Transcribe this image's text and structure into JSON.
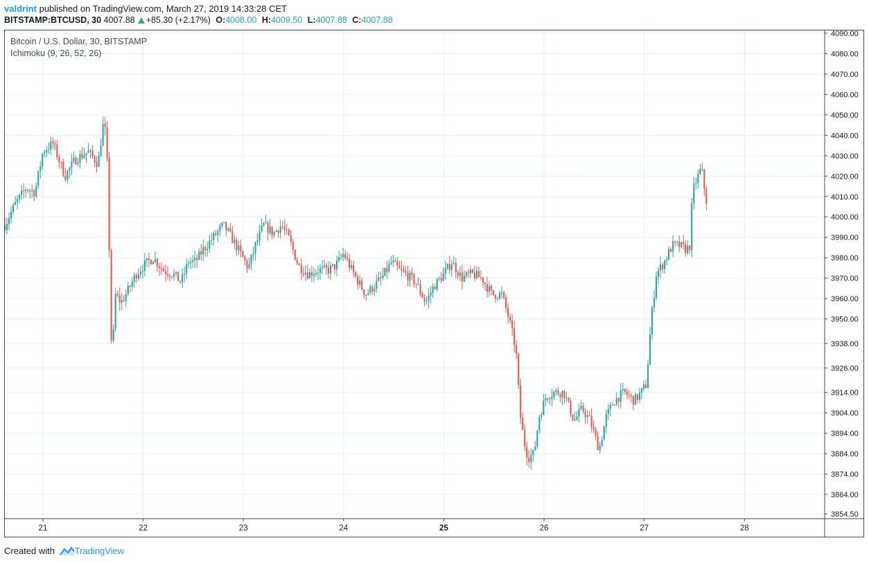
{
  "header": {
    "user": "valdrint",
    "published_text": "published on TradingView.com, March 27, 2019 14:33:28 CET",
    "symbol": "BITSTAMP:BTCUSD, 30",
    "last_price": "4007.88",
    "change": "+85.30 (+2.17%)",
    "open_label": "O:",
    "open": "4008.00",
    "high_label": "H:",
    "high": "4009.50",
    "low_label": "L:",
    "low": "4007.88",
    "close_label": "C:",
    "close": "4007.88"
  },
  "legend": {
    "title": "Bitcoin / U.S. Dollar, 30, BITSTAMP",
    "indicator": "Ichimoku (9, 26, 52, 26)"
  },
  "footer": {
    "created_with": "Created with",
    "brand": "TradingView"
  },
  "colors": {
    "up": "#26a69a",
    "down": "#ef5350",
    "grid": "#e6f0f5",
    "axis_text": "#131722"
  },
  "chart_data": {
    "type": "candlestick",
    "title": "Bitcoin / U.S. Dollar, 30, BITSTAMP",
    "x_ticks": [
      "21",
      "22",
      "23",
      "24",
      "25",
      "26",
      "27",
      "28"
    ],
    "x_ticks_bold": [
      "25"
    ],
    "x_range_days": [
      20.62,
      28.8
    ],
    "y_ticks": [
      "4090.00",
      "4080.00",
      "4070.00",
      "4060.00",
      "4050.00",
      "4040.00",
      "4030.00",
      "4020.00",
      "4010.00",
      "4000.00",
      "3990.00",
      "3980.00",
      "3970.00",
      "3960.00",
      "3950.00",
      "3938.00",
      "3926.00",
      "3914.00",
      "3904.00",
      "3894.00",
      "3884.00",
      "3874.00",
      "3864.00",
      "3854.50"
    ],
    "ylim": [
      3852,
      4092
    ],
    "interval_minutes": 30,
    "price_path": [
      [
        20.62,
        3996
      ],
      [
        20.72,
        4006
      ],
      [
        20.83,
        4014
      ],
      [
        20.92,
        4012
      ],
      [
        21.0,
        4032
      ],
      [
        21.1,
        4036
      ],
      [
        21.22,
        4020
      ],
      [
        21.32,
        4028
      ],
      [
        21.45,
        4032
      ],
      [
        21.55,
        4026
      ],
      [
        21.6,
        4045
      ],
      [
        21.62,
        4042
      ],
      [
        21.65,
        4020
      ],
      [
        21.67,
        3960
      ],
      [
        21.69,
        3928
      ],
      [
        21.72,
        3962
      ],
      [
        21.78,
        3958
      ],
      [
        21.85,
        3964
      ],
      [
        21.93,
        3972
      ],
      [
        22.0,
        3976
      ],
      [
        22.1,
        3980
      ],
      [
        22.2,
        3974
      ],
      [
        22.3,
        3972
      ],
      [
        22.38,
        3968
      ],
      [
        22.45,
        3978
      ],
      [
        22.52,
        3978
      ],
      [
        22.6,
        3984
      ],
      [
        22.7,
        3990
      ],
      [
        22.8,
        3996
      ],
      [
        22.88,
        3990
      ],
      [
        22.95,
        3984
      ],
      [
        23.05,
        3975
      ],
      [
        23.12,
        3986
      ],
      [
        23.2,
        3996
      ],
      [
        23.3,
        3992
      ],
      [
        23.38,
        3996
      ],
      [
        23.45,
        3990
      ],
      [
        23.55,
        3976
      ],
      [
        23.65,
        3972
      ],
      [
        23.75,
        3974
      ],
      [
        23.85,
        3974
      ],
      [
        23.92,
        3976
      ],
      [
        24.0,
        3982
      ],
      [
        24.08,
        3974
      ],
      [
        24.15,
        3968
      ],
      [
        24.22,
        3962
      ],
      [
        24.3,
        3966
      ],
      [
        24.38,
        3970
      ],
      [
        24.48,
        3978
      ],
      [
        24.55,
        3974
      ],
      [
        24.62,
        3972
      ],
      [
        24.72,
        3968
      ],
      [
        24.82,
        3958
      ],
      [
        24.9,
        3966
      ],
      [
        25.0,
        3972
      ],
      [
        25.08,
        3978
      ],
      [
        25.18,
        3970
      ],
      [
        25.28,
        3972
      ],
      [
        25.38,
        3970
      ],
      [
        25.48,
        3962
      ],
      [
        25.58,
        3962
      ],
      [
        25.65,
        3950
      ],
      [
        25.72,
        3935
      ],
      [
        25.76,
        3904
      ],
      [
        25.8,
        3890
      ],
      [
        25.84,
        3882
      ],
      [
        25.9,
        3884
      ],
      [
        25.95,
        3902
      ],
      [
        26.02,
        3912
      ],
      [
        26.1,
        3914
      ],
      [
        26.2,
        3914
      ],
      [
        26.3,
        3900
      ],
      [
        26.38,
        3906
      ],
      [
        26.46,
        3900
      ],
      [
        26.55,
        3886
      ],
      [
        26.62,
        3902
      ],
      [
        26.7,
        3910
      ],
      [
        26.8,
        3914
      ],
      [
        26.9,
        3910
      ],
      [
        26.97,
        3914
      ],
      [
        27.02,
        3918
      ],
      [
        27.07,
        3950
      ],
      [
        27.12,
        3972
      ],
      [
        27.2,
        3978
      ],
      [
        27.28,
        3986
      ],
      [
        27.35,
        3986
      ],
      [
        27.42,
        3984
      ],
      [
        27.46,
        3986
      ],
      [
        27.48,
        4012
      ],
      [
        27.52,
        4018
      ],
      [
        27.57,
        4024
      ],
      [
        27.6,
        4014
      ],
      [
        27.62,
        4008
      ]
    ]
  }
}
